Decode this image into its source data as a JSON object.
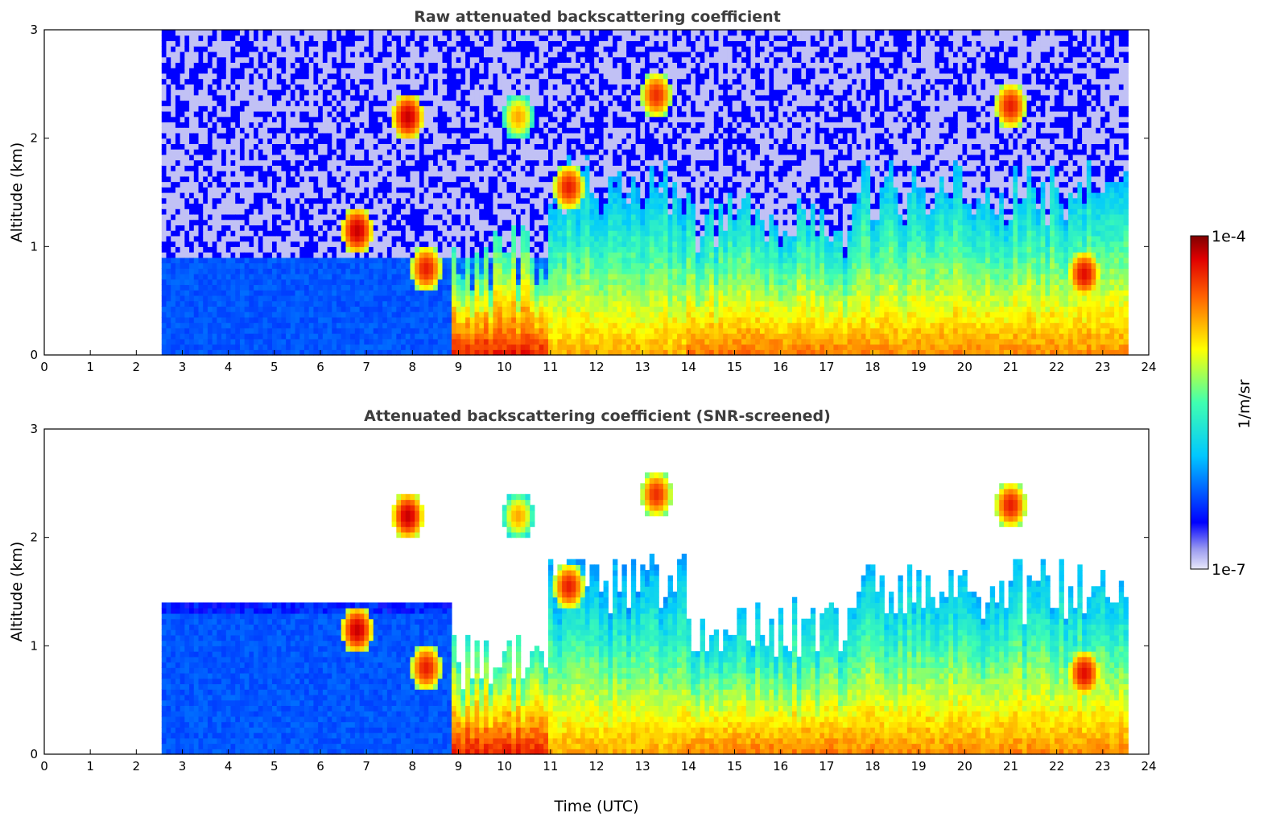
{
  "chart_data": [
    {
      "type": "heatmap",
      "title": "Raw attenuated backscattering coefficient",
      "xlabel": "",
      "ylabel": "Altitude (km)",
      "xlim": [
        0,
        24
      ],
      "ylim": [
        0,
        3
      ],
      "xticks": [
        "0",
        "1",
        "2",
        "3",
        "4",
        "5",
        "6",
        "7",
        "8",
        "9",
        "10",
        "11",
        "12",
        "13",
        "14",
        "15",
        "16",
        "17",
        "18",
        "19",
        "20",
        "21",
        "22",
        "23",
        "24"
      ],
      "yticks": [
        "0",
        "1",
        "2",
        "3"
      ],
      "data_time_range": [
        2.55,
        23.55
      ],
      "noise_top": true,
      "layers": [
        {
          "t0": 8.9,
          "t1": 10.9,
          "top": 0.6,
          "level": 0.9
        },
        {
          "t0": 11.0,
          "t1": 14.0,
          "top": 1.3,
          "level": 0.75
        },
        {
          "t0": 14.0,
          "t1": 17.6,
          "top": 0.9,
          "level": 0.8
        },
        {
          "t0": 17.6,
          "t1": 23.55,
          "top": 1.2,
          "level": 0.78
        }
      ],
      "clouds": [
        {
          "t": 6.8,
          "z": 1.15,
          "level": 0.95
        },
        {
          "t": 7.9,
          "z": 2.2,
          "level": 0.95
        },
        {
          "t": 8.3,
          "z": 0.8,
          "level": 0.9
        },
        {
          "t": 10.3,
          "z": 2.2,
          "level": 0.75
        },
        {
          "t": 11.4,
          "z": 1.55,
          "level": 0.9
        },
        {
          "t": 13.3,
          "z": 2.4,
          "level": 0.88
        },
        {
          "t": 21.0,
          "z": 2.3,
          "level": 0.9
        },
        {
          "t": 22.6,
          "z": 0.75,
          "level": 0.92
        }
      ]
    },
    {
      "type": "heatmap",
      "title": "Attenuated backscattering coefficient (SNR-screened)",
      "xlabel": "Time (UTC)",
      "ylabel": "Altitude (km)",
      "xlim": [
        0,
        24
      ],
      "ylim": [
        0,
        3
      ],
      "xticks": [
        "0",
        "1",
        "2",
        "3",
        "4",
        "5",
        "6",
        "7",
        "8",
        "9",
        "10",
        "11",
        "12",
        "13",
        "14",
        "15",
        "16",
        "17",
        "18",
        "19",
        "20",
        "21",
        "22",
        "23",
        "24"
      ],
      "yticks": [
        "0",
        "1",
        "2",
        "3"
      ],
      "data_time_range": [
        2.55,
        23.55
      ],
      "noise_top": false,
      "layers": [
        {
          "t0": 8.9,
          "t1": 10.9,
          "top": 0.6,
          "level": 0.9
        },
        {
          "t0": 11.0,
          "t1": 14.0,
          "top": 1.3,
          "level": 0.75
        },
        {
          "t0": 14.0,
          "t1": 17.6,
          "top": 0.9,
          "level": 0.8
        },
        {
          "t0": 17.6,
          "t1": 23.55,
          "top": 1.2,
          "level": 0.78
        }
      ],
      "clouds": [
        {
          "t": 6.8,
          "z": 1.15,
          "level": 0.95
        },
        {
          "t": 7.9,
          "z": 2.2,
          "level": 0.95
        },
        {
          "t": 8.3,
          "z": 0.8,
          "level": 0.9
        },
        {
          "t": 10.3,
          "z": 2.2,
          "level": 0.75
        },
        {
          "t": 11.4,
          "z": 1.55,
          "level": 0.9
        },
        {
          "t": 13.3,
          "z": 2.4,
          "level": 0.88
        },
        {
          "t": 21.0,
          "z": 2.3,
          "level": 0.9
        },
        {
          "t": 22.6,
          "z": 0.75,
          "level": 0.92
        }
      ]
    }
  ],
  "colorbar": {
    "max_label": "1e-4",
    "min_label": "1e-7",
    "unit_label": "1/m/sr",
    "scale": "log",
    "colormap": "jet"
  }
}
